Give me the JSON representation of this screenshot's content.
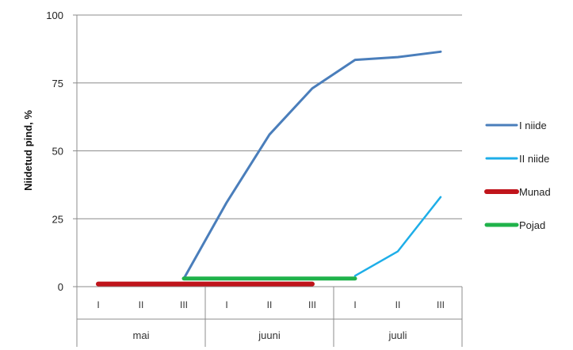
{
  "chart_data": {
    "type": "line",
    "title": "",
    "ylabel": "Niidetud pind, %",
    "xlabel": "",
    "ylim": [
      0,
      100
    ],
    "yticks": [
      "0",
      "25",
      "50",
      "75",
      "100"
    ],
    "categories": [
      "I",
      "II",
      "III",
      "I",
      "II",
      "III",
      "I",
      "II",
      "III"
    ],
    "groups": [
      {
        "label": "mai",
        "span": 3
      },
      {
        "label": "juuni",
        "span": 3
      },
      {
        "label": "juuli",
        "span": 3
      }
    ],
    "grid": true,
    "legend_position": "right",
    "series": [
      {
        "name": "I niide",
        "color": "#4a7ebb",
        "width": 3,
        "values": [
          null,
          null,
          3,
          31,
          56,
          73,
          83.5,
          84.5,
          86.5
        ]
      },
      {
        "name": "II niide",
        "color": "#1eaee8",
        "width": 2.5,
        "values": [
          null,
          null,
          null,
          null,
          null,
          null,
          4,
          13,
          33
        ]
      },
      {
        "name": "Munad",
        "color": "#c0141b",
        "width": 6,
        "values": [
          1,
          1,
          1,
          1,
          1,
          1,
          null,
          null,
          null
        ]
      },
      {
        "name": "Pojad",
        "color": "#1fb24a",
        "width": 5,
        "values": [
          null,
          null,
          3,
          3,
          3,
          3,
          3,
          null,
          null
        ]
      }
    ]
  }
}
